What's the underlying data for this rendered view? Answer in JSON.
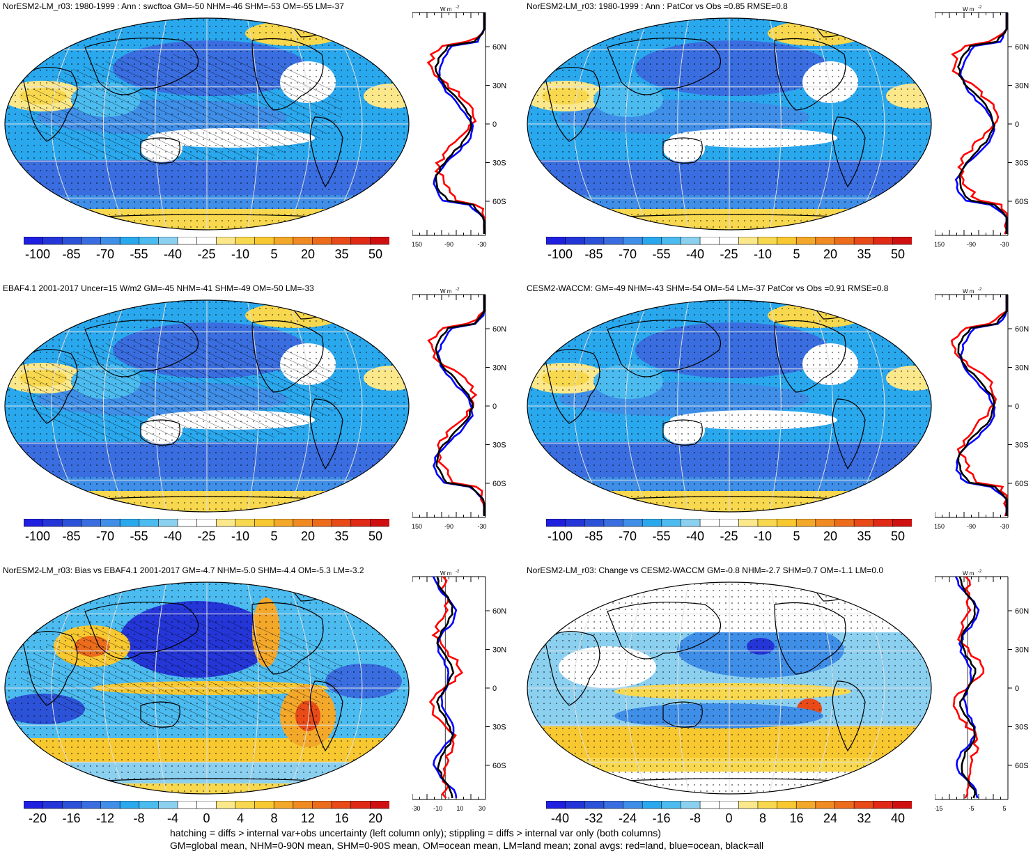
{
  "panels": [
    {
      "title": "NorESM2-LM_r03: 1980-1999 : Ann : swcftoa GM=-50 NHM=-46 SHM=-53 OM=-55 LM=-37",
      "colorbar": [
        "-100",
        "-85",
        "-70",
        "-55",
        "-40",
        "-25",
        "-10",
        "5",
        "20",
        "35",
        "50"
      ],
      "zonal_units": "W m",
      "zonal_units_sup": "-2",
      "zonal_xticks": [
        "-150",
        "-90",
        "-30"
      ],
      "lat_labels": [
        "60N",
        "30N",
        "0",
        "30S",
        "60S"
      ],
      "theme": "swcf",
      "hatching": true
    },
    {
      "title": "NorESM2-LM_r03: 1980-1999 : Ann : PatCor vs Obs =0.85 RMSE=0.8",
      "colorbar": [
        "-100",
        "-85",
        "-70",
        "-55",
        "-40",
        "-25",
        "-10",
        "5",
        "20",
        "35",
        "50"
      ],
      "zonal_units": "W m",
      "zonal_units_sup": "-2",
      "zonal_xticks": [
        "-150",
        "-90",
        "-30"
      ],
      "lat_labels": [
        "60N",
        "30N",
        "0",
        "30S",
        "60S"
      ],
      "theme": "swcf",
      "hatching": false
    },
    {
      "title": "EBAF4.1 2001-2017 Uncer=15 W/m2 GM=-45 NHM=-41 SHM=-49 OM=-50 LM=-33",
      "colorbar": [
        "-100",
        "-85",
        "-70",
        "-55",
        "-40",
        "-25",
        "-10",
        "5",
        "20",
        "35",
        "50"
      ],
      "zonal_units": "W m",
      "zonal_units_sup": "-2",
      "zonal_xticks": [
        "-150",
        "-90",
        "-30"
      ],
      "lat_labels": [
        "60N",
        "30N",
        "0",
        "30S",
        "60S"
      ],
      "theme": "swcf",
      "hatching": true
    },
    {
      "title": "CESM2-WACCM: GM=-49 NHM=-43 SHM=-54 OM=-54 LM=-37 PatCor vs Obs =0.91 RMSE=0.8",
      "colorbar": [
        "-100",
        "-85",
        "-70",
        "-55",
        "-40",
        "-25",
        "-10",
        "5",
        "20",
        "35",
        "50"
      ],
      "zonal_units": "W m",
      "zonal_units_sup": "-2",
      "zonal_xticks": [
        "-150",
        "-90",
        "-30"
      ],
      "lat_labels": [
        "60N",
        "30N",
        "0",
        "30S",
        "60S"
      ],
      "theme": "swcf",
      "hatching": false
    },
    {
      "title": "NorESM2-LM_r03: Bias vs EBAF4.1 2001-2017 GM=-4.7 NHM=-5.0 SHM=-4.4 OM=-5.3 LM=-3.2",
      "colorbar": [
        "-20",
        "-16",
        "-12",
        "-8",
        "-4",
        "0",
        "4",
        "8",
        "12",
        "16",
        "20"
      ],
      "zonal_units": "W m",
      "zonal_units_sup": "-2",
      "zonal_xticks": [
        "-30",
        "-10",
        "10",
        "30"
      ],
      "lat_labels": [
        "60N",
        "30N",
        "0",
        "30S",
        "60S"
      ],
      "theme": "bias",
      "hatching": true
    },
    {
      "title": "NorESM2-LM_r03: Change vs CESM2-WACCM GM=-0.8 NHM=-2.7 SHM=0.7 OM=-1.1 LM=0.0",
      "colorbar": [
        "-40",
        "-32",
        "-24",
        "-16",
        "-8",
        "0",
        "8",
        "16",
        "24",
        "32",
        "40"
      ],
      "zonal_units": "W m",
      "zonal_units_sup": "-2",
      "zonal_xticks": [
        "-15",
        "-5",
        "5"
      ],
      "lat_labels": [
        "60N",
        "30N",
        "0",
        "30S",
        "60S"
      ],
      "theme": "change",
      "hatching": false
    }
  ],
  "colors": {
    "palette": [
      "#1f1fe0",
      "#2436d8",
      "#2c52d8",
      "#3a6ee0",
      "#3f8ee8",
      "#2aa8ee",
      "#4cbcf0",
      "#8cd0f0",
      "#ffffff",
      "#ffffff",
      "#fbe88a",
      "#f8d84e",
      "#f8c830",
      "#f4a82a",
      "#f08a22",
      "#ec6c1c",
      "#e84a18",
      "#e02a16",
      "#d01010"
    ],
    "land_line": "#000000",
    "zonal_land": "#ff0000",
    "zonal_ocean": "#0000ff",
    "zonal_all": "#000000"
  },
  "footer": {
    "line1": "hatching = diffs > internal var+obs uncertainty (left column only); stippling = diffs > internal var only (both columns)",
    "line2": "GM=global mean, NHM=0-90N mean, SHM=0-90S mean, OM=ocean mean, LM=land mean; zonal avgs: red=land, blue=ocean, black=all"
  }
}
